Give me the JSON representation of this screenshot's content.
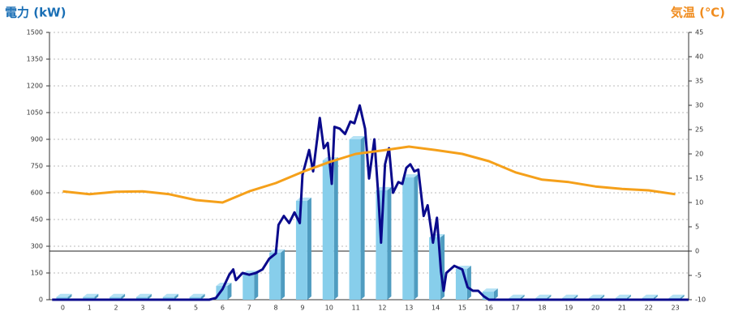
{
  "chart_data": {
    "type": "bar",
    "title": "電力 (kW)",
    "y2_title": "気温 (℃)",
    "categories": [
      0,
      1,
      2,
      3,
      4,
      5,
      6,
      7,
      8,
      9,
      10,
      11,
      12,
      13,
      14,
      15,
      16,
      17,
      18,
      19,
      20,
      21,
      22,
      23
    ],
    "series": [
      {
        "type": "bar",
        "color": "#87ceeb",
        "values": [
          15,
          15,
          15,
          15,
          15,
          15,
          77,
          145,
          264,
          555,
          782,
          900,
          614,
          686,
          350,
          173,
          45,
          10,
          10,
          10,
          10,
          10,
          10,
          10
        ]
      },
      {
        "type": "line",
        "color": "#0a0a8c",
        "x": [
          -0.4,
          0,
          1,
          2,
          3,
          4,
          5,
          5.5,
          5.75,
          6,
          6.25,
          6.4,
          6.5,
          6.75,
          7,
          7.25,
          7.5,
          7.75,
          8,
          8.1,
          8.3,
          8.5,
          8.7,
          8.9,
          9,
          9.25,
          9.4,
          9.65,
          9.8,
          9.95,
          10.1,
          10.2,
          10.4,
          10.6,
          10.8,
          10.95,
          11.15,
          11.35,
          11.5,
          11.7,
          11.85,
          11.95,
          12.1,
          12.25,
          12.4,
          12.6,
          12.75,
          12.9,
          13.05,
          13.2,
          13.35,
          13.55,
          13.7,
          13.9,
          14.05,
          14.2,
          14.3,
          14.4,
          14.7,
          15,
          15.2,
          15.4,
          15.6,
          15.8,
          16,
          16.3,
          17,
          18,
          19,
          20,
          21,
          22,
          23,
          23.5
        ],
        "values": [
          0,
          0,
          0,
          0,
          0,
          0,
          0,
          0,
          10,
          60,
          140,
          170,
          110,
          150,
          140,
          150,
          170,
          230,
          260,
          420,
          470,
          430,
          490,
          430,
          700,
          840,
          720,
          1020,
          850,
          880,
          650,
          970,
          960,
          930,
          1000,
          990,
          1090,
          960,
          680,
          900,
          580,
          320,
          760,
          850,
          600,
          660,
          650,
          740,
          760,
          720,
          730,
          470,
          530,
          320,
          460,
          160,
          50,
          150,
          190,
          170,
          70,
          50,
          50,
          20,
          0,
          0,
          0,
          0,
          0,
          0,
          0,
          0,
          0,
          0
        ]
      },
      {
        "type": "line",
        "axis": "y2",
        "color": "#f5a01a",
        "values": [
          12.3,
          11.7,
          12.2,
          12.3,
          11.7,
          10.5,
          10,
          12.3,
          14,
          16.3,
          18.3,
          20,
          20.7,
          21.5,
          20.8,
          20,
          18.5,
          16.2,
          14.7,
          14.2,
          13.3,
          12.8,
          12.5,
          11.7
        ]
      }
    ],
    "ylim": [
      0,
      1500
    ],
    "yticks": [
      0,
      150,
      300,
      450,
      600,
      750,
      900,
      1050,
      1200,
      1350,
      1500
    ],
    "y2lim": [
      -10,
      45
    ],
    "y2ticks": [
      -10,
      -5,
      0,
      5,
      10,
      15,
      20,
      25,
      30,
      35,
      40,
      45
    ],
    "grid": true
  }
}
